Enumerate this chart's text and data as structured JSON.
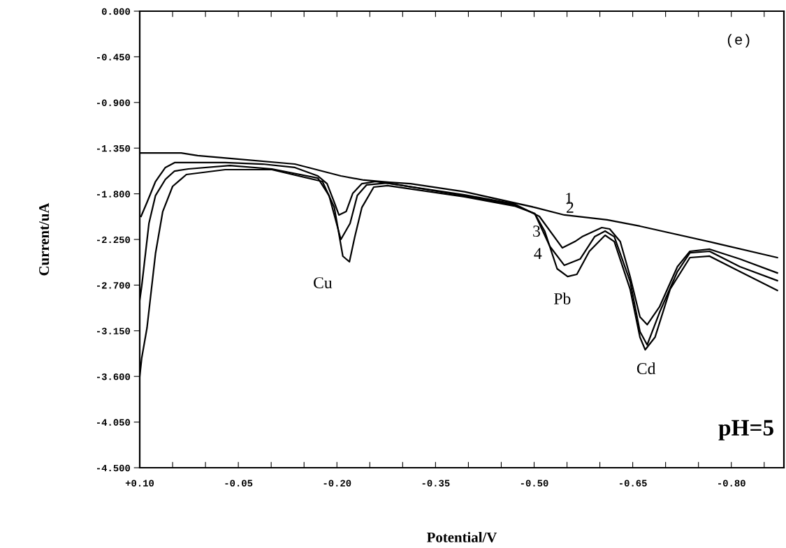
{
  "chart_data": {
    "type": "line",
    "xlabel": "Potential/V",
    "ylabel": "Current/uA",
    "xlim": [
      0.1,
      -0.88
    ],
    "ylim": [
      -4.5,
      0.0
    ],
    "xticks": [
      {
        "value": 0.1,
        "label": "+0.10"
      },
      {
        "value": 0.05,
        "label": null
      },
      {
        "value": 0.0,
        "label": null
      },
      {
        "value": -0.05,
        "label": "-0.05"
      },
      {
        "value": -0.1,
        "label": null
      },
      {
        "value": -0.15,
        "label": null
      },
      {
        "value": -0.2,
        "label": "-0.20"
      },
      {
        "value": -0.25,
        "label": null
      },
      {
        "value": -0.3,
        "label": null
      },
      {
        "value": -0.35,
        "label": "-0.35"
      },
      {
        "value": -0.4,
        "label": null
      },
      {
        "value": -0.45,
        "label": null
      },
      {
        "value": -0.5,
        "label": "-0.50"
      },
      {
        "value": -0.55,
        "label": null
      },
      {
        "value": -0.6,
        "label": null
      },
      {
        "value": -0.65,
        "label": "-0.65"
      },
      {
        "value": -0.7,
        "label": null
      },
      {
        "value": -0.75,
        "label": null
      },
      {
        "value": -0.8,
        "label": "-0.80"
      },
      {
        "value": -0.85,
        "label": null
      }
    ],
    "yticks": [
      {
        "value": 0.0,
        "label": "0.000"
      },
      {
        "value": -0.45,
        "label": "-0.450"
      },
      {
        "value": -0.9,
        "label": "-0.900"
      },
      {
        "value": -1.35,
        "label": "-1.350"
      },
      {
        "value": -1.8,
        "label": "-1.800"
      },
      {
        "value": -2.25,
        "label": "-2.250"
      },
      {
        "value": -2.7,
        "label": "-2.700"
      },
      {
        "value": -3.15,
        "label": "-3.150"
      },
      {
        "value": -3.6,
        "label": "-3.600"
      },
      {
        "value": -4.05,
        "label": "-4.050"
      },
      {
        "value": -4.5,
        "label": "-4.500"
      }
    ],
    "grid": false,
    "marker": "none",
    "line_style": "solid",
    "series": [
      {
        "color": "#000000",
        "x": [
          0.1,
          0.037,
          0.012,
          -0.04,
          -0.136,
          -0.206,
          -0.241,
          -0.28,
          -0.312,
          -0.394,
          -0.501,
          -0.546,
          -0.611,
          -0.661,
          -0.775,
          -0.87
        ],
        "values": [
          -1.397,
          -1.397,
          -1.424,
          -1.452,
          -1.507,
          -1.624,
          -1.665,
          -1.686,
          -1.7,
          -1.78,
          -1.934,
          -2.009,
          -2.057,
          -2.119,
          -2.285,
          -2.429
        ]
      },
      {
        "color": "#000000",
        "x": [
          0.098,
          0.089,
          0.076,
          0.061,
          0.047,
          -0.03,
          -0.087,
          -0.136,
          -0.171,
          -0.185,
          -0.196,
          -0.203,
          -0.214,
          -0.224,
          -0.238,
          -0.259,
          -0.394,
          -0.47,
          -0.508,
          -0.543,
          -0.562,
          -0.573,
          -0.603,
          -0.615,
          -0.631,
          -0.646,
          -0.661,
          -0.672,
          -0.691,
          -0.718,
          -0.737,
          -0.767,
          -0.813,
          -0.87
        ],
        "values": [
          -2.023,
          -1.885,
          -1.679,
          -1.541,
          -1.493,
          -1.493,
          -1.507,
          -1.541,
          -1.624,
          -1.7,
          -1.885,
          -2.009,
          -1.975,
          -1.796,
          -1.7,
          -1.679,
          -1.81,
          -1.9,
          -2.023,
          -2.333,
          -2.271,
          -2.223,
          -2.133,
          -2.147,
          -2.271,
          -2.615,
          -3.014,
          -3.09,
          -2.911,
          -2.518,
          -2.367,
          -2.346,
          -2.443,
          -2.58
        ]
      },
      {
        "color": "#000000",
        "x": [
          0.1,
          0.097,
          0.086,
          0.076,
          0.061,
          0.047,
          0.026,
          -0.037,
          -0.101,
          -0.171,
          -0.188,
          -0.206,
          -0.22,
          -0.231,
          -0.245,
          -0.277,
          -0.394,
          -0.47,
          -0.501,
          -0.524,
          -0.546,
          -0.57,
          -0.592,
          -0.608,
          -0.622,
          -0.646,
          -0.661,
          -0.672,
          -0.691,
          -0.718,
          -0.737,
          -0.767,
          -0.813,
          -0.87
        ],
        "values": [
          -2.85,
          -2.711,
          -2.092,
          -1.817,
          -1.658,
          -1.576,
          -1.555,
          -1.521,
          -1.555,
          -1.645,
          -1.817,
          -2.25,
          -2.092,
          -1.817,
          -1.713,
          -1.693,
          -1.82,
          -1.91,
          -1.995,
          -2.319,
          -2.505,
          -2.443,
          -2.223,
          -2.167,
          -2.223,
          -2.663,
          -3.158,
          -3.289,
          -2.966,
          -2.567,
          -2.381,
          -2.367,
          -2.518,
          -2.656
        ]
      },
      {
        "color": "#000000",
        "x": [
          0.1,
          0.097,
          0.089,
          0.076,
          0.065,
          0.05,
          0.029,
          -0.03,
          -0.101,
          -0.178,
          -0.196,
          -0.209,
          -0.219,
          -0.227,
          -0.238,
          -0.256,
          -0.277,
          -0.394,
          -0.47,
          -0.501,
          -0.516,
          -0.535,
          -0.551,
          -0.565,
          -0.584,
          -0.608,
          -0.622,
          -0.646,
          -0.661,
          -0.669,
          -0.684,
          -0.707,
          -0.737,
          -0.767,
          -0.813,
          -0.87
        ],
        "values": [
          -3.6,
          -3.42,
          -3.124,
          -2.388,
          -1.975,
          -1.727,
          -1.61,
          -1.562,
          -1.562,
          -1.679,
          -1.934,
          -2.415,
          -2.47,
          -2.229,
          -1.934,
          -1.734,
          -1.72,
          -1.83,
          -1.92,
          -1.995,
          -2.167,
          -2.539,
          -2.615,
          -2.594,
          -2.367,
          -2.209,
          -2.271,
          -2.739,
          -3.213,
          -3.337,
          -3.213,
          -2.739,
          -2.429,
          -2.415,
          -2.567,
          -2.752
        ]
      }
    ],
    "annotations": [
      "1",
      "2",
      "3",
      "4",
      "Cu",
      "Pb",
      "Cd",
      "(e)",
      "pH=5"
    ]
  }
}
